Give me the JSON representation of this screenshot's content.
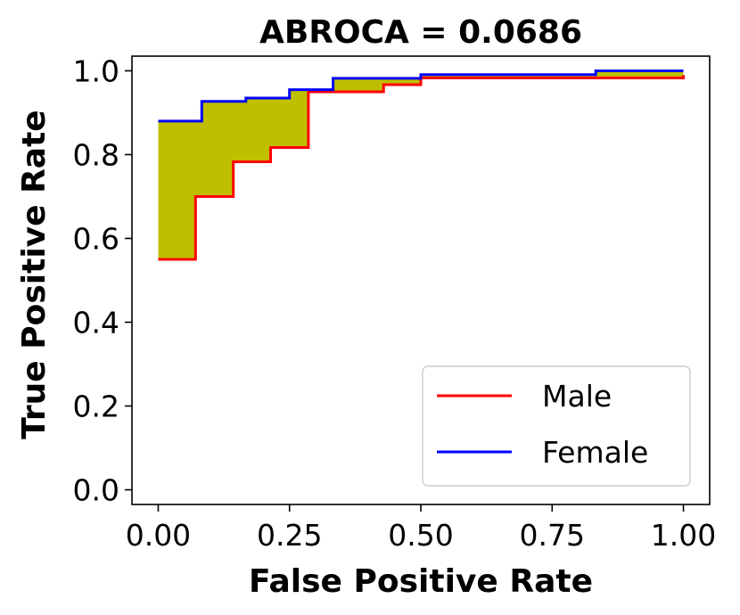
{
  "chart_data": {
    "type": "line",
    "title": "ABROCA = 0.0686",
    "xlabel": "False Positive Rate",
    "ylabel": "True Positive Rate",
    "xlim": [
      -0.05,
      1.05
    ],
    "ylim": [
      -0.035,
      1.035
    ],
    "xticks": [
      0.0,
      0.25,
      0.5,
      0.75,
      1.0
    ],
    "xtick_labels": [
      "0.00",
      "0.25",
      "0.50",
      "0.75",
      "1.00"
    ],
    "yticks": [
      0.0,
      0.2,
      0.4,
      0.6,
      0.8,
      1.0
    ],
    "ytick_labels": [
      "0.0",
      "0.2",
      "0.4",
      "0.6",
      "0.8",
      "1.0"
    ],
    "grid": false,
    "legend_position": "lower-right",
    "fill_color": "#bfbf00",
    "series": [
      {
        "name": "Male",
        "color": "#ff0000",
        "x": [
          0.0,
          0.071,
          0.071,
          0.143,
          0.143,
          0.214,
          0.214,
          0.286,
          0.286,
          0.429,
          0.429,
          0.5,
          0.5,
          1.0,
          1.0
        ],
        "y": [
          0.55,
          0.55,
          0.7,
          0.7,
          0.783,
          0.783,
          0.817,
          0.817,
          0.95,
          0.95,
          0.967,
          0.967,
          0.983,
          0.983,
          0.99
        ]
      },
      {
        "name": "Female",
        "color": "#0000ff",
        "x": [
          0.0,
          0.083,
          0.083,
          0.167,
          0.167,
          0.25,
          0.25,
          0.333,
          0.333,
          0.5,
          0.5,
          0.833,
          0.833,
          1.0
        ],
        "y": [
          0.88,
          0.88,
          0.927,
          0.927,
          0.935,
          0.935,
          0.955,
          0.955,
          0.982,
          0.982,
          0.991,
          0.991,
          1.0,
          1.0
        ]
      }
    ]
  }
}
